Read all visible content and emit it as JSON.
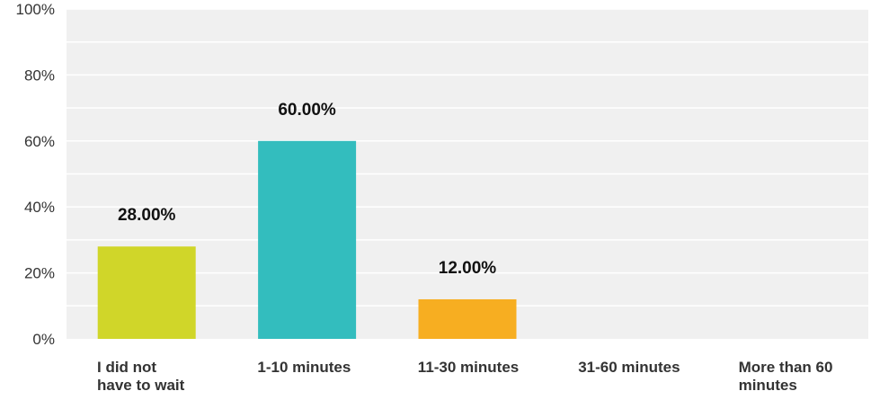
{
  "chart_data": {
    "type": "bar",
    "title": "",
    "xlabel": "",
    "ylabel": "",
    "categories": [
      "I did not have to wait",
      "1-10 minutes",
      "11-30 minutes",
      "31-60 minutes",
      "More than 60 minutes"
    ],
    "category_lines": [
      [
        "I did not",
        "have to wait"
      ],
      [
        "1-10 minutes"
      ],
      [
        "11-30 minutes"
      ],
      [
        "31-60 minutes"
      ],
      [
        "More than 60",
        "minutes"
      ]
    ],
    "values": [
      28,
      60,
      12,
      0,
      0
    ],
    "data_labels": [
      "28.00%",
      "60.00%",
      "12.00%",
      "",
      ""
    ],
    "bar_colors": [
      "#d0d629",
      "#33bdbe",
      "#f7ae21",
      "#cccccc",
      "#cccccc"
    ],
    "ylim": [
      0,
      100
    ],
    "yticks": [
      0,
      20,
      40,
      60,
      80,
      100
    ],
    "ytick_labels": [
      "0%",
      "20%",
      "40%",
      "60%",
      "80%",
      "100%"
    ],
    "grid": true,
    "plot_background": "#f0f0f0",
    "gridline_color": "#ffffff"
  }
}
